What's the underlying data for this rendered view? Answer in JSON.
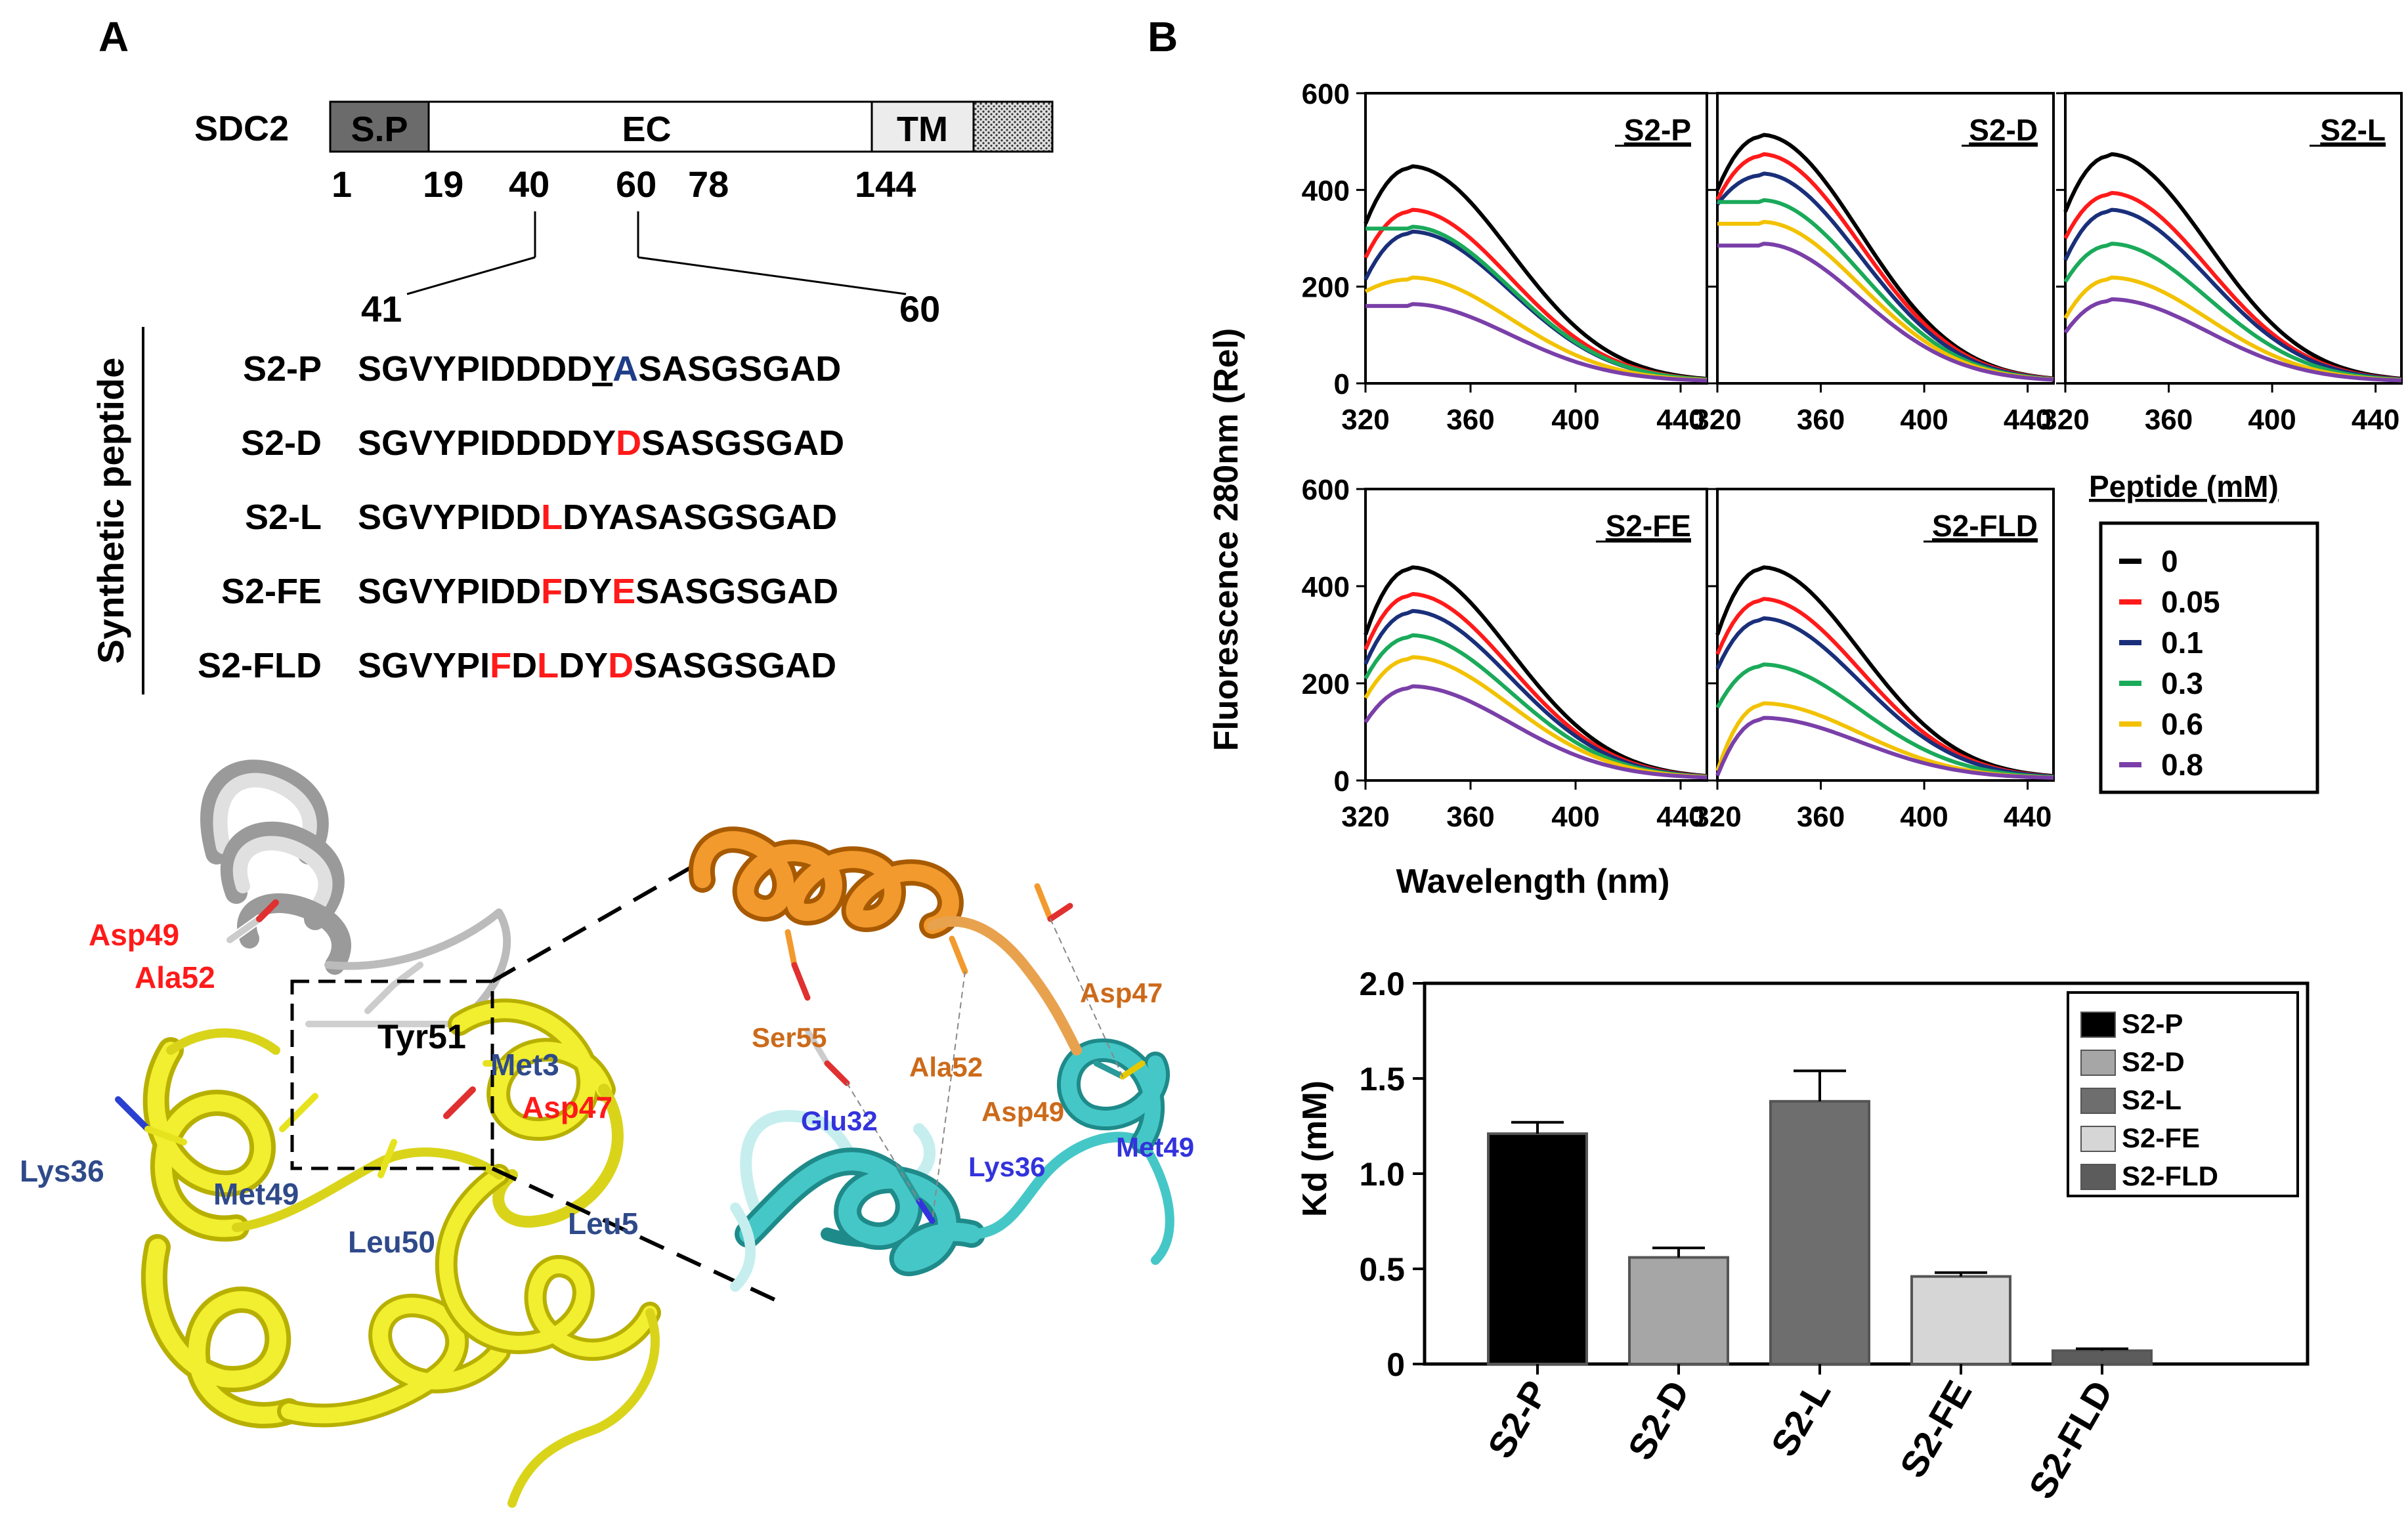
{
  "panels": {
    "a": "A",
    "b": "B"
  },
  "domain_bar": {
    "protein": "SDC2",
    "segments": [
      "S.P",
      "EC",
      "TM"
    ],
    "positions": [
      "1",
      "19",
      "40",
      "60",
      "78",
      "144"
    ],
    "zoom_start": "41",
    "zoom_end": "60"
  },
  "peptides": {
    "side_label": "Synthetic peptide",
    "rows": [
      {
        "name": "S2-P",
        "segments": [
          {
            "t": "SGVYPIDDDD",
            "c": "#000000"
          },
          {
            "t": "Y",
            "c": "#000000",
            "u": true
          },
          {
            "t": "A",
            "c": "#1f3c88"
          },
          {
            "t": "SASGSGAD",
            "c": "#000000"
          }
        ]
      },
      {
        "name": "S2-D",
        "segments": [
          {
            "t": "SGVYPIDDDDY",
            "c": "#000000"
          },
          {
            "t": "D",
            "c": "#ff1a1a"
          },
          {
            "t": "SASGSGAD",
            "c": "#000000"
          }
        ]
      },
      {
        "name": "S2-L",
        "segments": [
          {
            "t": "SGVYPIDD",
            "c": "#000000"
          },
          {
            "t": "L",
            "c": "#ff1a1a"
          },
          {
            "t": "DYASASGSGAD",
            "c": "#000000"
          }
        ]
      },
      {
        "name": "S2-FE",
        "segments": [
          {
            "t": "SGVYPIDD",
            "c": "#000000"
          },
          {
            "t": "F",
            "c": "#ff1a1a"
          },
          {
            "t": "DY",
            "c": "#000000"
          },
          {
            "t": "E",
            "c": "#ff1a1a"
          },
          {
            "t": "SASGSGAD",
            "c": "#000000"
          }
        ]
      },
      {
        "name": "S2-FLD",
        "segments": [
          {
            "t": "SGVYPI",
            "c": "#000000"
          },
          {
            "t": "F",
            "c": "#ff1a1a"
          },
          {
            "t": "D",
            "c": "#000000"
          },
          {
            "t": "L",
            "c": "#ff1a1a"
          },
          {
            "t": "DY",
            "c": "#000000"
          },
          {
            "t": "D",
            "c": "#ff1a1a"
          },
          {
            "t": "SASGSGAD",
            "c": "#000000"
          }
        ]
      }
    ]
  },
  "structure": {
    "left_labels": [
      {
        "text": "Asp49",
        "color": "#ff1a1a"
      },
      {
        "text": "Ala52",
        "color": "#ff1a1a"
      },
      {
        "text": "Tyr51",
        "color": "#000000"
      },
      {
        "text": "Met3",
        "color": "#2f4a8a"
      },
      {
        "text": "Asp47",
        "color": "#ff1a1a"
      },
      {
        "text": "Lys36",
        "color": "#2f4a8a"
      },
      {
        "text": "Met49",
        "color": "#2f4a8a"
      },
      {
        "text": "Leu50",
        "color": "#2f4a8a"
      },
      {
        "text": "Leu5",
        "color": "#2f4a8a"
      }
    ],
    "zoom_labels": [
      {
        "text": "Ser55",
        "color": "#cc6a1a"
      },
      {
        "text": "Ala52",
        "color": "#cc6a1a"
      },
      {
        "text": "Asp47",
        "color": "#cc6a1a"
      },
      {
        "text": "Asp49",
        "color": "#cc6a1a"
      },
      {
        "text": "Glu32",
        "color": "#3333dd"
      },
      {
        "text": "Lys36",
        "color": "#3333dd"
      },
      {
        "text": "Met49",
        "color": "#3333dd"
      }
    ],
    "colors": {
      "helix_yellow": "#e6e21e",
      "helix_gray": "#c8c8c8",
      "helix_orange": "#e8891c",
      "helix_cyan": "#34b5b5"
    }
  },
  "chart_data": [
    {
      "type": "line",
      "panels": [
        "S2-P",
        "S2-D",
        "S2-L",
        "S2-FE",
        "S2-FLD"
      ],
      "ylabel": "Fluorescence 280nm (Rel)",
      "xlabel": "Wavelength (nm)",
      "xlim": [
        320,
        450
      ],
      "ylim": [
        0,
        600
      ],
      "xticks": [
        320,
        360,
        400,
        440
      ],
      "yticks": [
        0,
        200,
        400,
        600
      ],
      "legend_title": "Peptide (mM)",
      "legend_position": "right",
      "series": [
        {
          "name": "0",
          "color": "#000000",
          "peaks": [
            445,
            510,
            470,
            435,
            435
          ],
          "starts": [
            330,
            400,
            355,
            300,
            300
          ]
        },
        {
          "name": "0.05",
          "color": "#ff1a1a",
          "peaks": [
            355,
            470,
            390,
            380,
            370
          ],
          "starts": [
            260,
            380,
            300,
            270,
            260
          ]
        },
        {
          "name": "0.1",
          "color": "#1a2f7a",
          "peaks": [
            310,
            430,
            355,
            345,
            330
          ],
          "starts": [
            215,
            370,
            255,
            240,
            230
          ]
        },
        {
          "name": "0.3",
          "color": "#1aaa5a",
          "peaks": [
            320,
            375,
            285,
            295,
            235
          ],
          "starts": [
            320,
            375,
            210,
            210,
            150
          ]
        },
        {
          "name": "0.6",
          "color": "#f2c200",
          "peaks": [
            215,
            330,
            215,
            250,
            155
          ],
          "starts": [
            190,
            330,
            135,
            170,
            20
          ]
        },
        {
          "name": "0.8",
          "color": "#7a3fa8",
          "peaks": [
            160,
            285,
            170,
            190,
            125
          ],
          "starts": [
            160,
            285,
            105,
            120,
            10
          ]
        }
      ]
    },
    {
      "type": "bar",
      "categories": [
        "S2-P",
        "S2-D",
        "S2-L",
        "S2-FE",
        "S2-FLD"
      ],
      "values": [
        1.21,
        0.56,
        1.38,
        0.46,
        0.07
      ],
      "errors": [
        0.06,
        0.05,
        0.16,
        0.02,
        0.01
      ],
      "colors": [
        "#000000",
        "#a6a6a6",
        "#6e6e6e",
        "#d6d6d6",
        "#5c5c5c"
      ],
      "ylabel": "Kd (mM)",
      "ylim": [
        0,
        2.0
      ],
      "yticks": [
        "0",
        "0.5",
        "1.0",
        "1.5",
        "2.0"
      ],
      "legend": [
        "S2-P",
        "S2-D",
        "S2-L",
        "S2-FE",
        "S2-FLD"
      ],
      "legend_position": "top-right"
    }
  ]
}
